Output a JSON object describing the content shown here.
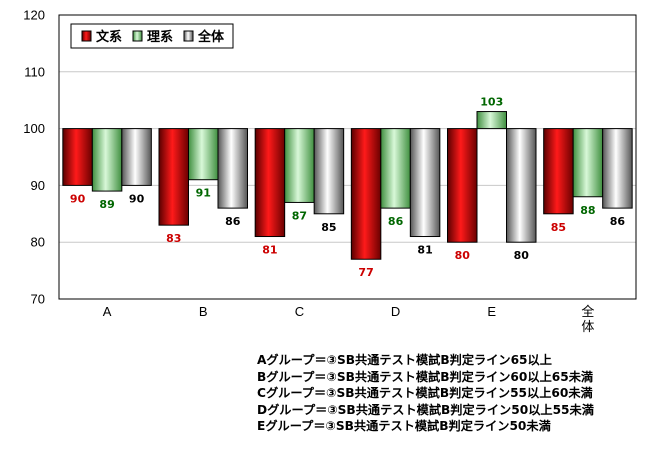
{
  "chart_data": {
    "type": "bar",
    "categories": [
      "A",
      "B",
      "C",
      "D",
      "E",
      "全体"
    ],
    "series": [
      {
        "name": "文系",
        "values": [
          90,
          83,
          81,
          77,
          80,
          85
        ],
        "color": "#cc0000"
      },
      {
        "name": "理系",
        "values": [
          89,
          91,
          87,
          86,
          103,
          88
        ],
        "color": "#7fd07f"
      },
      {
        "name": "全体",
        "values": [
          90,
          86,
          85,
          81,
          80,
          86
        ],
        "color": "#9a9a9a"
      }
    ],
    "label_colors": [
      "#cc0000",
      "#006600",
      "#000000"
    ],
    "baseline": 100,
    "ylim": [
      70,
      120
    ],
    "yticks": [
      "70",
      "80",
      "90",
      "100",
      "110",
      "120"
    ],
    "grid": true,
    "legend": "top-left",
    "title": "",
    "xlabel": "",
    "ylabel": ""
  },
  "notes": [
    "Aグループ＝③SB共通テスト模試B判定ライン65以上",
    "Bグループ＝③SB共通テスト模試B判定ライン60以上65未満",
    "Cグループ＝③SB共通テスト模試B判定ライン55以上60未満",
    "Dグループ＝③SB共通テスト模試B判定ライン50以上55未満",
    "Eグループ＝③SB共通テスト模試B判定ライン50未満"
  ]
}
